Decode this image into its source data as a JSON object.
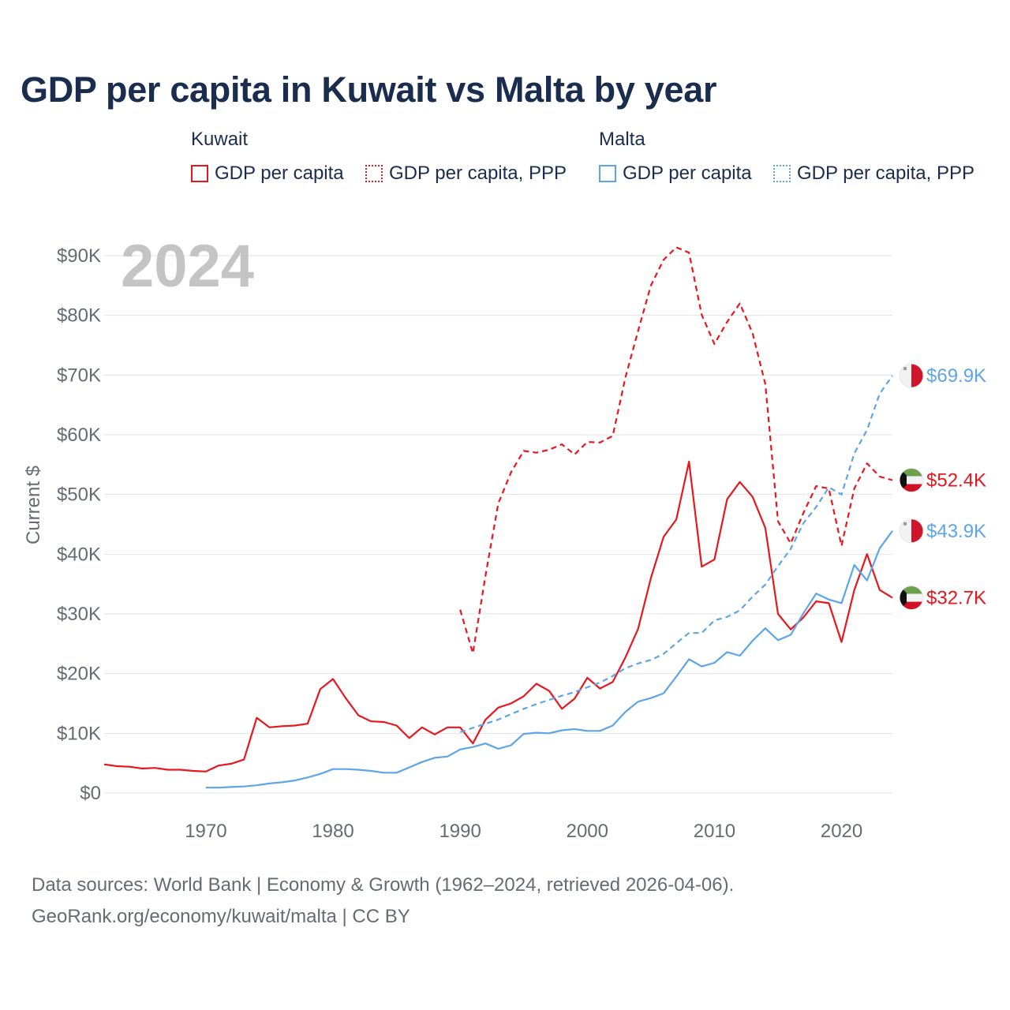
{
  "title": "GDP per capita in Kuwait vs Malta by year",
  "legend": {
    "groups": [
      {
        "name": "Kuwait",
        "items": [
          {
            "label": "GDP per capita",
            "color": "#e8161d",
            "style": "solid"
          },
          {
            "label": "GDP per capita, PPP",
            "color": "#e8161d",
            "style": "dotted"
          }
        ]
      },
      {
        "name": "Malta",
        "items": [
          {
            "label": "GDP per capita",
            "color": "#5da5e8",
            "style": "solid"
          },
          {
            "label": "GDP per capita, PPP",
            "color": "#5da5e8",
            "style": "dotted"
          }
        ]
      }
    ]
  },
  "year_label": "2024",
  "end_labels": [
    {
      "text": "$69.9K",
      "value": 69.9,
      "country": "Malta",
      "color": "#5da5e8"
    },
    {
      "text": "$52.4K",
      "value": 52.4,
      "country": "Kuwait",
      "color": "#e8161d"
    },
    {
      "text": "$43.9K",
      "value": 43.9,
      "country": "Malta",
      "color": "#5da5e8"
    },
    {
      "text": "$32.7K",
      "value": 32.7,
      "country": "Kuwait",
      "color": "#e8161d"
    }
  ],
  "footer": {
    "line1": "Data sources: World Bank | Economy & Growth (1962–2024, retrieved 2026-04-06).",
    "line2": "GeoRank.org/economy/kuwait/malta | CC BY"
  },
  "chart_data": {
    "type": "line",
    "title": "GDP per capita in Kuwait vs Malta by year",
    "xlabel": "",
    "ylabel": "Current $",
    "xlim": [
      1962,
      2024
    ],
    "ylim": [
      0,
      90
    ],
    "y_unit": "thousand US$",
    "x_ticks": [
      1970,
      1980,
      1990,
      2000,
      2010,
      2020
    ],
    "y_ticks": [
      {
        "value": 0,
        "label": "$0"
      },
      {
        "value": 10,
        "label": "$10K"
      },
      {
        "value": 20,
        "label": "$20K"
      },
      {
        "value": 30,
        "label": "$30K"
      },
      {
        "value": 40,
        "label": "$40K"
      },
      {
        "value": 50,
        "label": "$50K"
      },
      {
        "value": 60,
        "label": "$60K"
      },
      {
        "value": 70,
        "label": "$70K"
      },
      {
        "value": 80,
        "label": "$80K"
      },
      {
        "value": 90,
        "label": "$90K"
      }
    ],
    "grid": true,
    "series": [
      {
        "name": "Kuwait GDP per capita",
        "country": "Kuwait",
        "color": "#e8161d",
        "dash": "solid",
        "x": [
          1962,
          1963,
          1964,
          1965,
          1966,
          1967,
          1968,
          1969,
          1970,
          1971,
          1972,
          1973,
          1974,
          1975,
          1976,
          1977,
          1978,
          1979,
          1980,
          1981,
          1982,
          1983,
          1984,
          1985,
          1986,
          1987,
          1988,
          1989,
          1990,
          1991,
          1992,
          1993,
          1994,
          1995,
          1996,
          1997,
          1998,
          1999,
          2000,
          2001,
          2002,
          2003,
          2004,
          2005,
          2006,
          2007,
          2008,
          2009,
          2010,
          2011,
          2012,
          2013,
          2014,
          2015,
          2016,
          2017,
          2018,
          2019,
          2020,
          2021,
          2022,
          2023,
          2024
        ],
        "values": [
          4.8,
          4.5,
          4.4,
          4.1,
          4.2,
          3.9,
          3.9,
          3.7,
          3.6,
          4.6,
          4.9,
          5.6,
          12.6,
          11.0,
          11.2,
          11.3,
          11.6,
          17.4,
          19.1,
          15.9,
          13.0,
          12.0,
          11.9,
          11.3,
          9.2,
          11.0,
          9.8,
          11.0,
          11.0,
          8.3,
          12.3,
          14.3,
          15.0,
          16.2,
          18.3,
          17.1,
          14.1,
          15.8,
          19.3,
          17.5,
          18.6,
          22.7,
          27.5,
          36.0,
          42.9,
          45.8,
          55.5,
          37.9,
          39.1,
          49.2,
          52.1,
          49.6,
          44.4,
          30.0,
          27.4,
          29.4,
          32.1,
          31.8,
          25.3,
          34.0,
          40.0,
          34.0,
          32.7
        ]
      },
      {
        "name": "Kuwait GDP per capita, PPP",
        "country": "Kuwait",
        "color": "#e8161d",
        "dash": "dashed",
        "x": [
          1990,
          1991,
          1992,
          1993,
          1994,
          1995,
          1996,
          1997,
          1998,
          1999,
          2000,
          2001,
          2002,
          2003,
          2004,
          2005,
          2006,
          2007,
          2008,
          2009,
          2010,
          2011,
          2012,
          2013,
          2014,
          2015,
          2016,
          2017,
          2018,
          2019,
          2020,
          2021,
          2022,
          2023,
          2024
        ],
        "values": [
          30.7,
          23.4,
          36.5,
          48.5,
          53.7,
          57.3,
          57.0,
          57.5,
          58.4,
          56.7,
          58.8,
          58.7,
          59.8,
          69.6,
          77.4,
          85.0,
          89.3,
          91.4,
          90.5,
          80.1,
          75.2,
          78.9,
          82.0,
          77.0,
          68.5,
          45.5,
          41.8,
          46.9,
          51.4,
          51.0,
          41.4,
          51.0,
          55.2,
          53.0,
          52.4
        ]
      },
      {
        "name": "Malta GDP per capita",
        "country": "Malta",
        "color": "#5da5e8",
        "dash": "solid",
        "x": [
          1970,
          1971,
          1972,
          1973,
          1974,
          1975,
          1976,
          1977,
          1978,
          1979,
          1980,
          1981,
          1982,
          1983,
          1984,
          1985,
          1986,
          1987,
          1988,
          1989,
          1990,
          1991,
          1992,
          1993,
          1994,
          1995,
          1996,
          1997,
          1998,
          1999,
          2000,
          2001,
          2002,
          2003,
          2004,
          2005,
          2006,
          2007,
          2008,
          2009,
          2010,
          2011,
          2012,
          2013,
          2014,
          2015,
          2016,
          2017,
          2018,
          2019,
          2020,
          2021,
          2022,
          2023,
          2024
        ],
        "values": [
          0.9,
          0.9,
          1.0,
          1.1,
          1.3,
          1.6,
          1.8,
          2.1,
          2.6,
          3.2,
          4.0,
          4.0,
          3.9,
          3.7,
          3.4,
          3.4,
          4.3,
          5.2,
          5.9,
          6.1,
          7.3,
          7.7,
          8.3,
          7.4,
          8.0,
          9.9,
          10.1,
          10.0,
          10.5,
          10.7,
          10.4,
          10.4,
          11.3,
          13.6,
          15.3,
          15.9,
          16.7,
          19.5,
          22.4,
          21.2,
          21.8,
          23.6,
          23.0,
          25.5,
          27.6,
          25.6,
          26.5,
          30.1,
          33.4,
          32.4,
          31.8,
          38.2,
          35.6,
          41.0,
          43.9
        ]
      },
      {
        "name": "Malta GDP per capita, PPP",
        "country": "Malta",
        "color": "#5da5e8",
        "dash": "dashed",
        "x": [
          1990,
          1991,
          1992,
          1993,
          1994,
          1995,
          1996,
          1997,
          1998,
          1999,
          2000,
          2001,
          2002,
          2003,
          2004,
          2005,
          2006,
          2007,
          2008,
          2009,
          2010,
          2011,
          2012,
          2013,
          2014,
          2015,
          2016,
          2017,
          2018,
          2019,
          2020,
          2021,
          2022,
          2023,
          2024
        ],
        "values": [
          10.2,
          10.9,
          11.6,
          12.3,
          13.2,
          14.1,
          14.9,
          15.6,
          16.3,
          16.9,
          17.7,
          18.5,
          19.6,
          20.9,
          21.7,
          22.3,
          23.3,
          25.1,
          26.8,
          26.8,
          28.9,
          29.5,
          30.6,
          32.9,
          34.9,
          38.0,
          40.9,
          45.2,
          47.9,
          51.2,
          50.0,
          56.9,
          60.8,
          66.9,
          69.9
        ]
      }
    ]
  }
}
